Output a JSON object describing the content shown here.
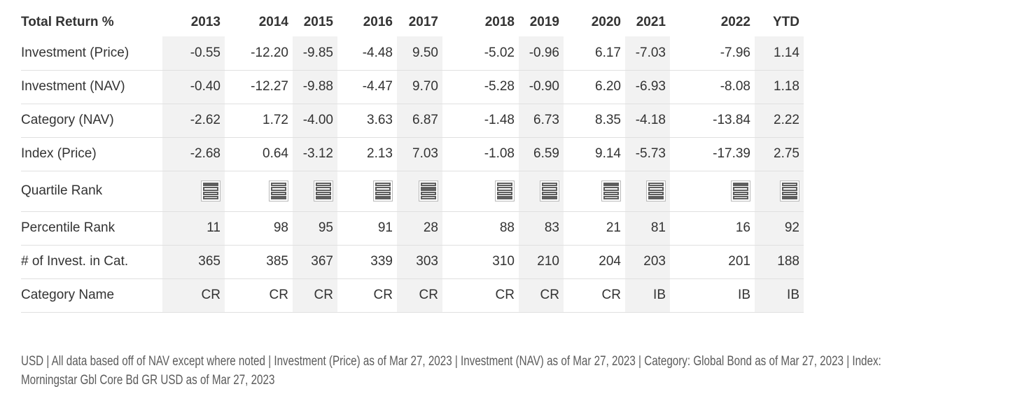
{
  "colors": {
    "band_shading": "#f2f2f2",
    "row_border": "#e0e0e0",
    "table_text": "#333333",
    "footer_text": "#5b5b5b",
    "quartile_fill": "#5e5e5e",
    "quartile_frame": "#b9b9b9"
  },
  "table": {
    "corner_label": "Total Return %",
    "columns": [
      "2013",
      "2014",
      "2015",
      "2016",
      "2017",
      "2018",
      "2019",
      "2020",
      "2021",
      "2022",
      "YTD"
    ],
    "return_rows": [
      {
        "label": "Investment (Price)",
        "values": [
          "-0.55",
          "-12.20",
          "-9.85",
          "-4.48",
          "9.50",
          "-5.02",
          "-0.96",
          "6.17",
          "-7.03",
          "-7.96",
          "1.14"
        ]
      },
      {
        "label": "Investment (NAV)",
        "values": [
          "-0.40",
          "-12.27",
          "-9.88",
          "-4.47",
          "9.70",
          "-5.28",
          "-0.90",
          "6.20",
          "-6.93",
          "-8.08",
          "1.18"
        ]
      },
      {
        "label": "Category (NAV)",
        "values": [
          "-2.62",
          "1.72",
          "-4.00",
          "3.63",
          "6.87",
          "-1.48",
          "6.73",
          "8.35",
          "-4.18",
          "-13.84",
          "2.22"
        ]
      },
      {
        "label": "Index (Price)",
        "values": [
          "-2.68",
          "0.64",
          "-3.12",
          "2.13",
          "7.03",
          "-1.08",
          "6.59",
          "9.14",
          "-5.73",
          "-17.39",
          "2.75"
        ]
      }
    ],
    "quartile_row": {
      "label": "Quartile Rank",
      "quartiles": [
        1,
        4,
        4,
        4,
        2,
        4,
        4,
        1,
        4,
        1,
        4
      ]
    },
    "rank_rows": [
      {
        "label": "Percentile Rank",
        "values": [
          "11",
          "98",
          "95",
          "91",
          "28",
          "88",
          "83",
          "21",
          "81",
          "16",
          "92"
        ]
      },
      {
        "label": "# of Invest. in Cat.",
        "values": [
          "365",
          "385",
          "367",
          "339",
          "303",
          "310",
          "210",
          "204",
          "203",
          "201",
          "188"
        ]
      },
      {
        "label": "Category Name",
        "values": [
          "CR",
          "CR",
          "CR",
          "CR",
          "CR",
          "CR",
          "CR",
          "CR",
          "IB",
          "IB",
          "IB"
        ]
      }
    ]
  },
  "footer": {
    "line1": "USD | All data based off of NAV except where noted | Investment (Price) as of Mar 27, 2023 | Investment (NAV) as of Mar 27, 2023 | Category: Global Bond as of Mar 27, 2023 | Index:",
    "line2": "Morningstar Gbl Core Bd GR USD as of Mar 27, 2023"
  },
  "chart_data": {
    "type": "table",
    "title": "Total Return %",
    "categories": [
      "2013",
      "2014",
      "2015",
      "2016",
      "2017",
      "2018",
      "2019",
      "2020",
      "2021",
      "2022",
      "YTD"
    ],
    "series": [
      {
        "name": "Investment (Price)",
        "values": [
          -0.55,
          -12.2,
          -9.85,
          -4.48,
          9.5,
          -5.02,
          -0.96,
          6.17,
          -7.03,
          -7.96,
          1.14
        ]
      },
      {
        "name": "Investment (NAV)",
        "values": [
          -0.4,
          -12.27,
          -9.88,
          -4.47,
          9.7,
          -5.28,
          -0.9,
          6.2,
          -6.93,
          -8.08,
          1.18
        ]
      },
      {
        "name": "Category (NAV)",
        "values": [
          -2.62,
          1.72,
          -4.0,
          3.63,
          6.87,
          -1.48,
          6.73,
          8.35,
          -4.18,
          -13.84,
          2.22
        ]
      },
      {
        "name": "Index (Price)",
        "values": [
          -2.68,
          0.64,
          -3.12,
          2.13,
          7.03,
          -1.08,
          6.59,
          9.14,
          -5.73,
          -17.39,
          2.75
        ]
      },
      {
        "name": "Quartile Rank",
        "values": [
          1,
          4,
          4,
          4,
          2,
          4,
          4,
          1,
          4,
          1,
          4
        ]
      },
      {
        "name": "Percentile Rank",
        "values": [
          11,
          98,
          95,
          91,
          28,
          88,
          83,
          21,
          81,
          16,
          92
        ]
      },
      {
        "name": "# of Invest. in Cat.",
        "values": [
          365,
          385,
          367,
          339,
          303,
          310,
          210,
          204,
          203,
          201,
          188
        ]
      },
      {
        "name": "Category Name",
        "values": [
          "CR",
          "CR",
          "CR",
          "CR",
          "CR",
          "CR",
          "CR",
          "CR",
          "IB",
          "IB",
          "IB"
        ]
      }
    ],
    "footnote": "USD | All data based off of NAV except where noted | Investment (Price) as of Mar 27, 2023 | Investment (NAV) as of Mar 27, 2023 | Category: Global Bond as of Mar 27, 2023 | Index: Morningstar Gbl Core Bd GR USD as of Mar 27, 2023",
    "layout": {
      "shaded_columns": [
        "2013",
        "2015",
        "2017",
        "2019",
        "2021",
        "YTD"
      ],
      "grid": "horizontal-row-dividers-only"
    }
  }
}
